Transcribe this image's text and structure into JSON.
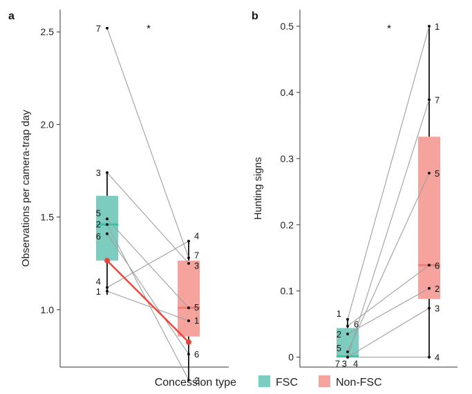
{
  "legend": {
    "title": "Concession type",
    "items": [
      {
        "label": "FSC",
        "color": "#7ccdbf"
      },
      {
        "label": "Non-FSC",
        "color": "#f6a39d"
      }
    ]
  },
  "colors": {
    "highlight": "#e8453c",
    "line": "#9e9e9e",
    "fsc_median": "#3dbfa8",
    "nonfsc_median": "#f27b74"
  },
  "chart_data": [
    {
      "panel": "a",
      "type": "box-paired",
      "ylabel": "Observations per camera-trap day",
      "ylim": [
        0.69,
        2.62
      ],
      "yticks": [
        1.0,
        1.5,
        2.0,
        2.5
      ],
      "yticklabels": [
        "1.0",
        "1.5",
        "2.0",
        "2.5"
      ],
      "annotation": "*",
      "groups": [
        "FSC",
        "Non-FSC"
      ],
      "boxes": [
        {
          "group": "FSC",
          "whisker_low": 1.08,
          "q1": 1.265,
          "median": 1.46,
          "q3": 1.615,
          "whisker_high": 1.74
        },
        {
          "group": "Non-FSC",
          "whisker_low": 0.62,
          "q1": 0.855,
          "median": 1.01,
          "q3": 1.265,
          "whisker_high": 1.37
        }
      ],
      "pairs": [
        {
          "id": "1",
          "fsc": 1.1,
          "nonfsc": 0.94,
          "highlight": false
        },
        {
          "id": "2",
          "fsc": 1.46,
          "nonfsc": 0.62,
          "highlight": false
        },
        {
          "id": "3",
          "fsc": 1.74,
          "nonfsc": 1.25,
          "highlight": false
        },
        {
          "id": "4",
          "fsc": 1.12,
          "nonfsc": 1.37,
          "highlight": false
        },
        {
          "id": "5",
          "fsc": 1.49,
          "nonfsc": 1.01,
          "highlight": false
        },
        {
          "id": "6",
          "fsc": 1.41,
          "nonfsc": 0.76,
          "highlight": false
        },
        {
          "id": "7",
          "fsc": 2.52,
          "nonfsc": 1.28,
          "highlight": false
        },
        {
          "id": "",
          "fsc": 1.265,
          "nonfsc": 0.825,
          "highlight": true
        }
      ]
    },
    {
      "panel": "b",
      "type": "box-paired",
      "ylabel": "Hunting signs",
      "ylim": [
        -0.015,
        0.525
      ],
      "yticks": [
        0,
        0.1,
        0.2,
        0.3,
        0.4,
        0.5
      ],
      "yticklabels": [
        "0",
        "0.1",
        "0.2",
        "0.3",
        "0.4",
        "0.5"
      ],
      "annotation": "*",
      "groups": [
        "FSC",
        "Non-FSC"
      ],
      "boxes": [
        {
          "group": "FSC",
          "whisker_low": 0.0,
          "q1": 0.0,
          "median": 0.001,
          "q3": 0.044,
          "whisker_high": 0.057
        },
        {
          "group": "Non-FSC",
          "whisker_low": 0.0,
          "q1": 0.088,
          "median": 0.139,
          "q3": 0.333,
          "whisker_high": 0.5
        }
      ],
      "pairs": [
        {
          "id": "1",
          "fsc": 0.057,
          "nonfsc": 0.5
        },
        {
          "id": "2",
          "fsc": 0.035,
          "nonfsc": 0.104
        },
        {
          "id": "3",
          "fsc": 0.0,
          "nonfsc": 0.074
        },
        {
          "id": "4",
          "fsc": 0.0,
          "nonfsc": 0.0
        },
        {
          "id": "5",
          "fsc": 0.008,
          "nonfsc": 0.278
        },
        {
          "id": "6",
          "fsc": 0.047,
          "nonfsc": 0.139
        },
        {
          "id": "7",
          "fsc": 0.0,
          "nonfsc": 0.389
        }
      ]
    }
  ]
}
